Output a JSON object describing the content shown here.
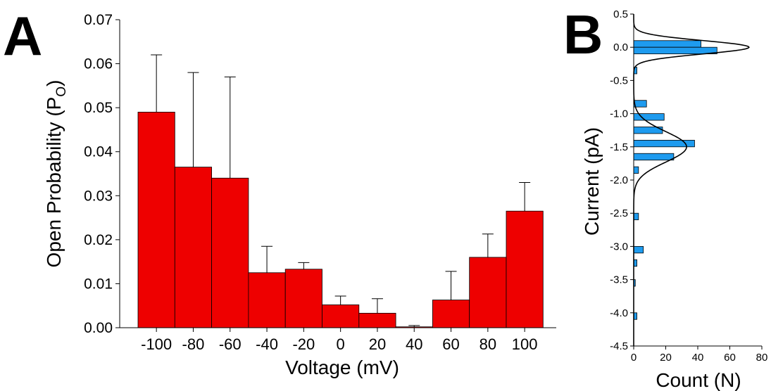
{
  "panels": {
    "a_letter": "A",
    "b_letter": "B"
  },
  "chart_data": [
    {
      "panel": "A",
      "type": "bar",
      "xlabel": "Voltage (mV)",
      "ylabel_main": "Open Probability (P",
      "ylabel_sub": "O",
      "ylabel_close": ")",
      "categories": [
        "-100",
        "-80",
        "-60",
        "-40",
        "-20",
        "0",
        "20",
        "40",
        "60",
        "80",
        "100"
      ],
      "values": [
        0.049,
        0.0365,
        0.034,
        0.0125,
        0.0133,
        0.0052,
        0.0033,
        0.0002,
        0.0063,
        0.016,
        0.0265
      ],
      "errors": [
        0.013,
        0.0215,
        0.023,
        0.006,
        0.0015,
        0.002,
        0.0033,
        0.0003,
        0.0065,
        0.0053,
        0.0065
      ],
      "ylim": [
        0,
        0.07
      ],
      "yticks": [
        "0.00",
        "0.01",
        "0.02",
        "0.03",
        "0.04",
        "0.05",
        "0.06",
        "0.07"
      ],
      "bar_color": "#ee0000",
      "grid": false
    },
    {
      "panel": "B",
      "type": "bar",
      "orientation": "horizontal",
      "xlabel": "Count (N)",
      "ylabel": "Current (pA)",
      "xlim": [
        0,
        80
      ],
      "ylim": [
        -4.5,
        0.5
      ],
      "xticks": [
        "0",
        "20",
        "40",
        "60",
        "80"
      ],
      "yticks": [
        "0.5",
        "0.0",
        "-0.5",
        "-1.0",
        "-1.5",
        "-2.0",
        "-2.5",
        "-3.0",
        "-3.5",
        "-4.0",
        "-4.5"
      ],
      "bin_width": 0.1,
      "bins": [
        {
          "lo": 0.0,
          "hi": 0.1,
          "count": 42
        },
        {
          "lo": -0.1,
          "hi": 0.0,
          "count": 52
        },
        {
          "lo": -0.4,
          "hi": -0.3,
          "count": 2
        },
        {
          "lo": -0.9,
          "hi": -0.8,
          "count": 8
        },
        {
          "lo": -1.1,
          "hi": -1.0,
          "count": 19
        },
        {
          "lo": -1.3,
          "hi": -1.2,
          "count": 18
        },
        {
          "lo": -1.5,
          "hi": -1.4,
          "count": 38
        },
        {
          "lo": -1.7,
          "hi": -1.6,
          "count": 25
        },
        {
          "lo": -1.9,
          "hi": -1.8,
          "count": 3
        },
        {
          "lo": -2.6,
          "hi": -2.5,
          "count": 3
        },
        {
          "lo": -3.1,
          "hi": -3.0,
          "count": 6
        },
        {
          "lo": -3.3,
          "hi": -3.2,
          "count": 2
        },
        {
          "lo": -3.6,
          "hi": -3.5,
          "count": 1
        },
        {
          "lo": -4.1,
          "hi": -4.0,
          "count": 2
        }
      ],
      "fits": [
        {
          "center": 0.0,
          "amplitude": 72,
          "sigma": 0.1
        },
        {
          "center": -1.5,
          "amplitude": 33,
          "sigma": 0.23
        }
      ],
      "bar_color": "#1e9bef",
      "grid": false
    }
  ]
}
